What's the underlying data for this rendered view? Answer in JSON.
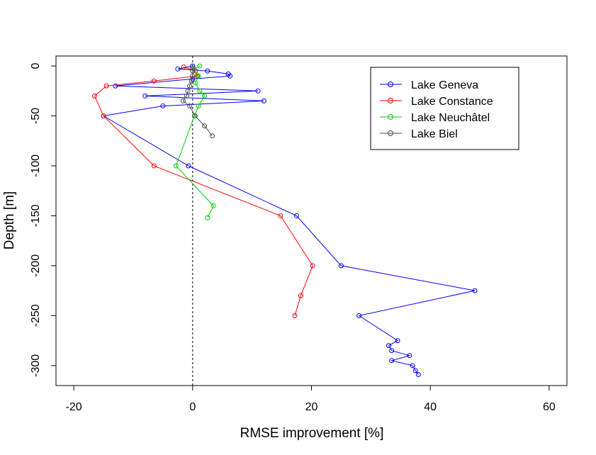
{
  "chart_data": {
    "type": "line",
    "title": "",
    "xlabel": "RMSE improvement [%]",
    "ylabel": "Depth [m]",
    "xlim": [
      -23,
      63
    ],
    "ylim": [
      -320,
      10
    ],
    "xticks": [
      -20,
      0,
      20,
      40,
      60
    ],
    "yticks": [
      0,
      -50,
      -100,
      -150,
      -200,
      -250,
      -300
    ],
    "xtick_labels": [
      "-20",
      "0",
      "20",
      "40",
      "60"
    ],
    "ytick_labels": [
      "0",
      "-50",
      "-100",
      "-150",
      "-200",
      "-250",
      "-300"
    ],
    "reference_line": {
      "x": 0,
      "style": "dotted"
    },
    "grid": false,
    "legend_position": "top-right",
    "series": [
      {
        "name": "Lake Geneva",
        "color": "#0000ff",
        "points": [
          [
            0,
            0
          ],
          [
            -2.5,
            -3
          ],
          [
            2.5,
            -5
          ],
          [
            6,
            -8
          ],
          [
            6.3,
            -10
          ],
          [
            0,
            -13
          ],
          [
            -13,
            -20
          ],
          [
            11,
            -25
          ],
          [
            -8,
            -30
          ],
          [
            12,
            -35
          ],
          [
            -5,
            -40
          ],
          [
            -15,
            -50
          ],
          [
            -0.7,
            -100
          ],
          [
            17.5,
            -150
          ],
          [
            25,
            -200
          ],
          [
            47.5,
            -225
          ],
          [
            28,
            -250
          ],
          [
            34.5,
            -275
          ],
          [
            33,
            -280
          ],
          [
            33.5,
            -285
          ],
          [
            36.5,
            -290
          ],
          [
            33.5,
            -295
          ],
          [
            37,
            -300
          ],
          [
            37.5,
            -305
          ],
          [
            38,
            -309
          ]
        ]
      },
      {
        "name": "Lake Constance",
        "color": "#ff0000",
        "points": [
          [
            -1.5,
            -1
          ],
          [
            0.5,
            -5
          ],
          [
            0.8,
            -10
          ],
          [
            -6.5,
            -15
          ],
          [
            -14.5,
            -20
          ],
          [
            -16.5,
            -30
          ],
          [
            -15,
            -50
          ],
          [
            -6.5,
            -100
          ],
          [
            14.8,
            -150
          ],
          [
            20.2,
            -200
          ],
          [
            18.2,
            -230
          ],
          [
            17.2,
            -250
          ]
        ]
      },
      {
        "name": "Lake Neuchâtel",
        "color": "#00cd00",
        "points": [
          [
            1.2,
            0
          ],
          [
            0.2,
            -3
          ],
          [
            1,
            -10
          ],
          [
            0.5,
            -17
          ],
          [
            1.2,
            -25
          ],
          [
            2,
            -30
          ],
          [
            1,
            -40
          ],
          [
            0.3,
            -50
          ],
          [
            -2.8,
            -100
          ],
          [
            3.5,
            -140
          ],
          [
            2.5,
            -152
          ]
        ]
      },
      {
        "name": "Lake Biel",
        "color": "#4d4d4d",
        "points": [
          [
            0,
            -2
          ],
          [
            0,
            -5
          ],
          [
            0,
            -10
          ],
          [
            -0.2,
            -15
          ],
          [
            -0.5,
            -20
          ],
          [
            -0.8,
            -25
          ],
          [
            -1,
            -30
          ],
          [
            -1.6,
            -35
          ],
          [
            -0.5,
            -40
          ],
          [
            0.4,
            -50
          ],
          [
            2,
            -60
          ],
          [
            3.3,
            -70
          ]
        ]
      }
    ]
  }
}
